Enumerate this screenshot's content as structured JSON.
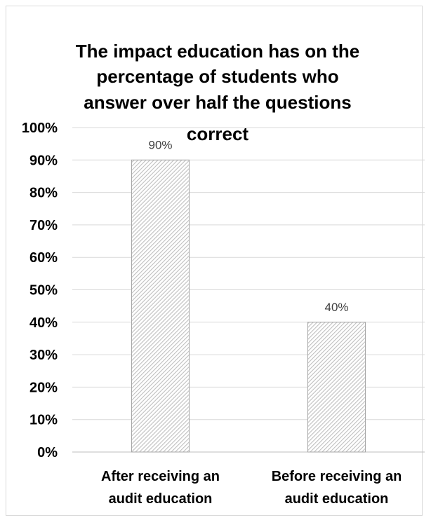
{
  "chart_data": {
    "type": "bar",
    "title_lines": [
      "The impact education has on the",
      "percentage of students who",
      "answer over half the questions",
      "correct"
    ],
    "categories": [
      [
        "After receiving an",
        "audit education"
      ],
      [
        "Before receiving an",
        "audit education"
      ]
    ],
    "values": [
      90,
      40
    ],
    "data_labels": [
      "90%",
      "40%"
    ],
    "y_ticks": [
      "0%",
      "10%",
      "20%",
      "30%",
      "40%",
      "50%",
      "60%",
      "70%",
      "80%",
      "90%",
      "100%"
    ],
    "ylim": [
      0,
      100
    ],
    "grid": true,
    "legend": "none",
    "colors": {
      "bar_fill_pattern": "#bfbfbf",
      "bar_border": "#a6a6a6",
      "grid": "#d9d9d9",
      "text": "#000000",
      "data_label": "#404040"
    }
  }
}
